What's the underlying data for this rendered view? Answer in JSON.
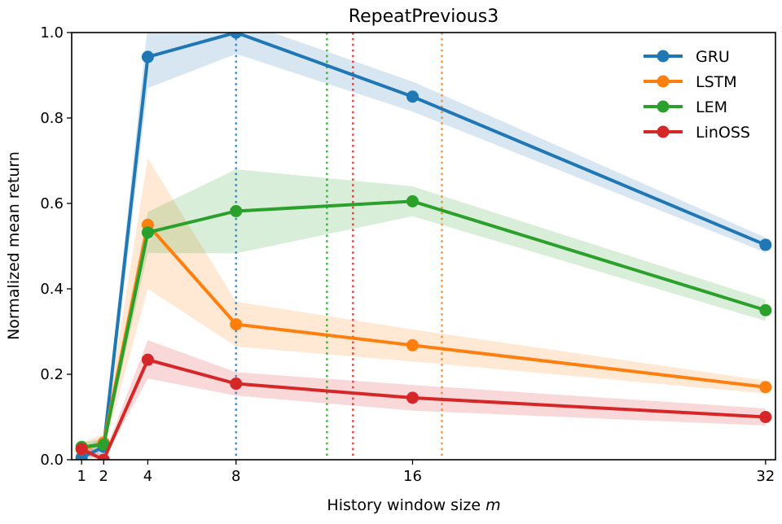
{
  "chart_data": {
    "type": "line",
    "title": "RepeatPrevious3",
    "xlabel": "History window size",
    "xlabel_var": "m",
    "ylabel": "Normalized mean return",
    "xlim": [
      0.55,
      32.45
    ],
    "ylim": [
      0,
      1
    ],
    "x": [
      1,
      2,
      4,
      8,
      16,
      32
    ],
    "xticks": [
      "1",
      "2",
      "4",
      "8",
      "16",
      "32"
    ],
    "yticks": [
      "0.0",
      "0.2",
      "0.4",
      "0.6",
      "0.8",
      "1.0"
    ],
    "grid": false,
    "legend": "top-right",
    "series": [
      {
        "name": "GRU",
        "color": "#1f77b4",
        "values": [
          0.005,
          0.03,
          0.943,
          1.0,
          0.85,
          0.503
        ],
        "lower": [
          0.0,
          0.01,
          0.87,
          0.95,
          0.815,
          0.485
        ],
        "upper": [
          0.03,
          0.05,
          1.02,
          1.03,
          0.885,
          0.52
        ],
        "vline": 8
      },
      {
        "name": "LSTM",
        "color": "#ff7f0e",
        "values": [
          0.025,
          0.04,
          0.55,
          0.317,
          0.268,
          0.17
        ],
        "lower": [
          0.01,
          0.02,
          0.4,
          0.265,
          0.23,
          0.155
        ],
        "upper": [
          0.04,
          0.06,
          0.705,
          0.37,
          0.305,
          0.185
        ],
        "vline": 17.33
      },
      {
        "name": "LEM",
        "color": "#2ca02c",
        "values": [
          0.03,
          0.035,
          0.532,
          0.582,
          0.605,
          0.35
        ],
        "lower": [
          0.02,
          0.02,
          0.484,
          0.483,
          0.57,
          0.325
        ],
        "upper": [
          0.04,
          0.05,
          0.58,
          0.68,
          0.64,
          0.375
        ],
        "vline": 12.12
      },
      {
        "name": "LinOSS",
        "color": "#d62728",
        "values": [
          0.025,
          0.0,
          0.234,
          0.178,
          0.145,
          0.1
        ],
        "lower": [
          0.01,
          0.0,
          0.19,
          0.15,
          0.115,
          0.08
        ],
        "upper": [
          0.04,
          0.01,
          0.28,
          0.205,
          0.175,
          0.12
        ],
        "vline": 13.3
      }
    ]
  }
}
